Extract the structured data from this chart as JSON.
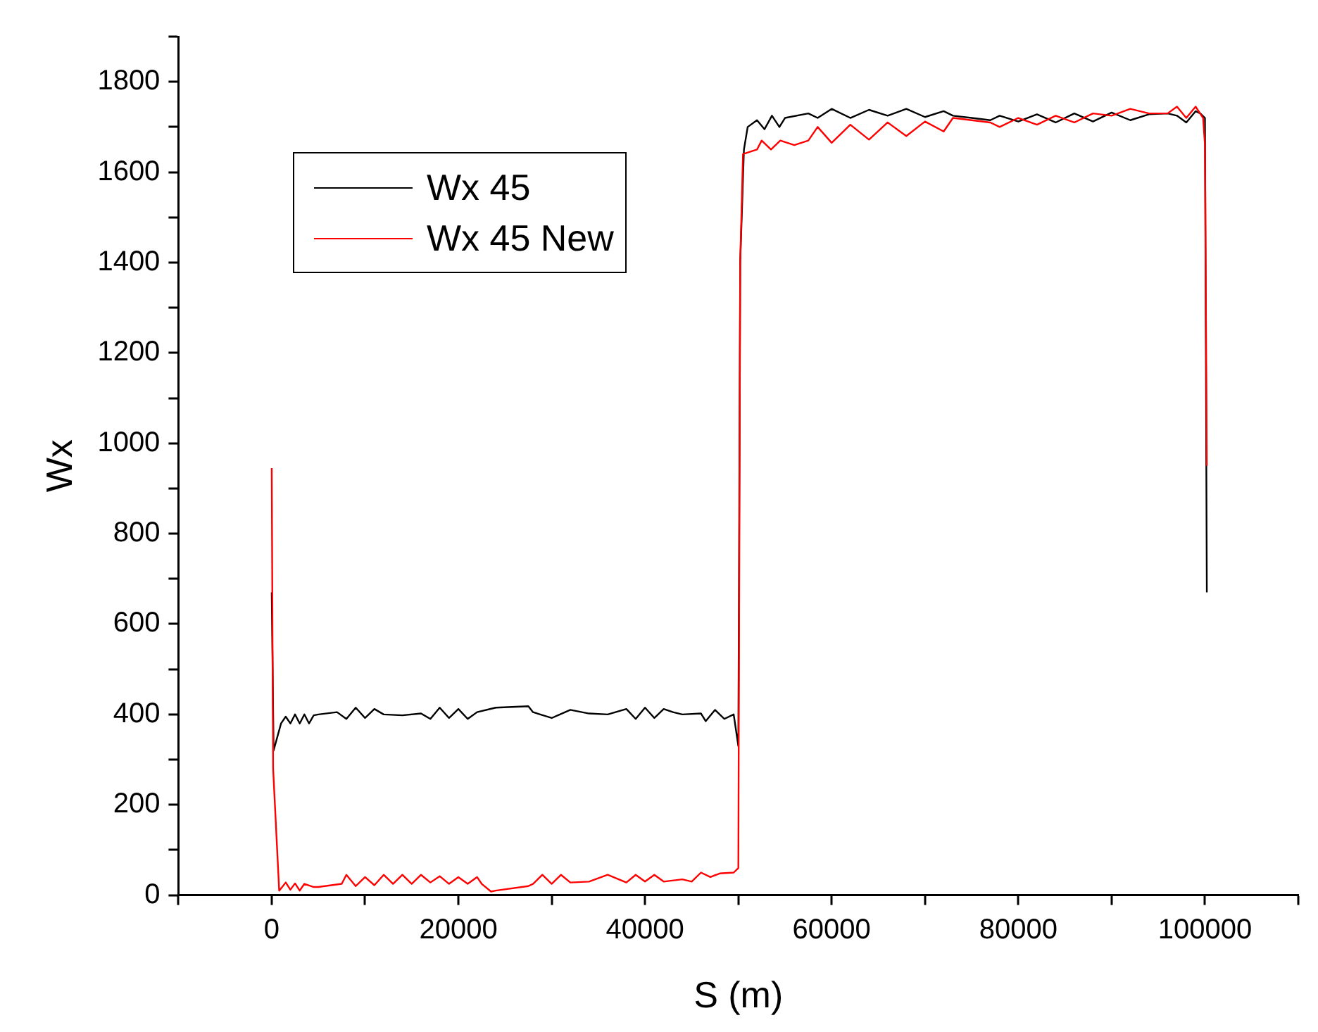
{
  "chart_data": {
    "type": "line",
    "xlabel": "S (m)",
    "ylabel": "Wx",
    "xlim": [
      -10000,
      110000
    ],
    "ylim": [
      0,
      1900
    ],
    "xticks": [
      {
        "value": -10000,
        "label": null
      },
      0,
      {
        "value": 10000,
        "label": null
      },
      20000,
      {
        "value": 30000,
        "label": null
      },
      40000,
      {
        "value": 50000,
        "label": null
      },
      60000,
      {
        "value": 70000,
        "label": null
      },
      80000,
      {
        "value": 90000,
        "label": null
      },
      100000,
      {
        "value": 110000,
        "label": null
      }
    ],
    "yticks": [
      0,
      {
        "value": 100,
        "label": null
      },
      200,
      {
        "value": 300,
        "label": null
      },
      400,
      {
        "value": 500,
        "label": null
      },
      600,
      {
        "value": 700,
        "label": null
      },
      800,
      {
        "value": 900,
        "label": null
      },
      1000,
      {
        "value": 1100,
        "label": null
      },
      1200,
      {
        "value": 1300,
        "label": null
      },
      1400,
      {
        "value": 1500,
        "label": null
      },
      1600,
      {
        "value": 1700,
        "label": null
      },
      1800,
      {
        "value": 1900,
        "label": null
      }
    ],
    "grid": false,
    "legend": "top left",
    "marker": "none",
    "line_style": "solid",
    "series": [
      {
        "name": "Wx 45",
        "color": "#000000",
        "x": [
          0,
          200,
          1000,
          1500,
          2000,
          2500,
          3000,
          3500,
          4000,
          4500,
          5000,
          7000,
          8000,
          9000,
          10000,
          11000,
          12000,
          14000,
          16000,
          17000,
          18000,
          19000,
          20000,
          21000,
          22000,
          24000,
          27500,
          28000,
          30000,
          32000,
          34000,
          36000,
          38000,
          39000,
          40000,
          41000,
          42000,
          43000,
          44000,
          46000,
          46500,
          47500,
          48500,
          49500,
          50000,
          50200,
          50600,
          51000,
          52000,
          52800,
          53600,
          54400,
          55000,
          57500,
          58500,
          60000,
          62000,
          64000,
          66000,
          68000,
          70000,
          72000,
          73000,
          75000,
          77000,
          78000,
          80000,
          82000,
          84000,
          86000,
          88000,
          90000,
          92000,
          94000,
          96000,
          97000,
          98000,
          99000,
          99500,
          100000,
          100200
        ],
        "values": [
          670,
          320,
          380,
          395,
          380,
          400,
          380,
          400,
          380,
          398,
          400,
          405,
          390,
          415,
          392,
          412,
          400,
          398,
          402,
          390,
          415,
          392,
          412,
          390,
          405,
          415,
          418,
          405,
          392,
          410,
          402,
          400,
          412,
          390,
          415,
          392,
          412,
          405,
          400,
          402,
          385,
          410,
          390,
          400,
          330,
          1400,
          1650,
          1700,
          1715,
          1695,
          1725,
          1700,
          1720,
          1730,
          1720,
          1740,
          1720,
          1738,
          1725,
          1740,
          1722,
          1735,
          1725,
          1720,
          1715,
          1725,
          1712,
          1728,
          1710,
          1730,
          1712,
          1732,
          1715,
          1728,
          1730,
          1725,
          1710,
          1735,
          1730,
          1720,
          670
        ]
      },
      {
        "name": "Wx 45 New",
        "color": "#ff0000",
        "x": [
          0,
          150,
          800,
          1000,
          1500,
          2000,
          2500,
          3000,
          3500,
          4500,
          5000,
          7500,
          8000,
          9000,
          10000,
          11000,
          12000,
          13000,
          14000,
          15000,
          16000,
          17000,
          18000,
          19000,
          20000,
          21000,
          22000,
          22500,
          23500,
          24000,
          27500,
          28000,
          29000,
          30000,
          31000,
          32000,
          34000,
          36000,
          38000,
          39000,
          40000,
          41000,
          42000,
          44000,
          45000,
          46000,
          47000,
          48000,
          49500,
          50000,
          50200,
          50500,
          52000,
          52500,
          53500,
          54500,
          56000,
          57500,
          58500,
          60000,
          62000,
          64000,
          66000,
          68000,
          70000,
          72000,
          73000,
          77000,
          78000,
          80000,
          82000,
          84000,
          86000,
          88000,
          90000,
          92000,
          94000,
          96000,
          97000,
          98000,
          99000,
          99800,
          100000,
          100200
        ],
        "values": [
          945,
          280,
          10,
          15,
          28,
          12,
          26,
          10,
          25,
          18,
          18,
          25,
          45,
          20,
          40,
          22,
          45,
          25,
          45,
          25,
          45,
          28,
          42,
          25,
          40,
          25,
          40,
          25,
          8,
          10,
          20,
          25,
          45,
          25,
          45,
          28,
          30,
          45,
          28,
          45,
          30,
          45,
          30,
          35,
          30,
          50,
          40,
          48,
          50,
          60,
          1400,
          1640,
          1650,
          1670,
          1650,
          1670,
          1660,
          1670,
          1700,
          1665,
          1705,
          1672,
          1710,
          1680,
          1712,
          1690,
          1720,
          1710,
          1700,
          1720,
          1705,
          1725,
          1710,
          1730,
          1725,
          1740,
          1730,
          1730,
          1745,
          1720,
          1745,
          1720,
          1660,
          950
        ]
      }
    ]
  }
}
